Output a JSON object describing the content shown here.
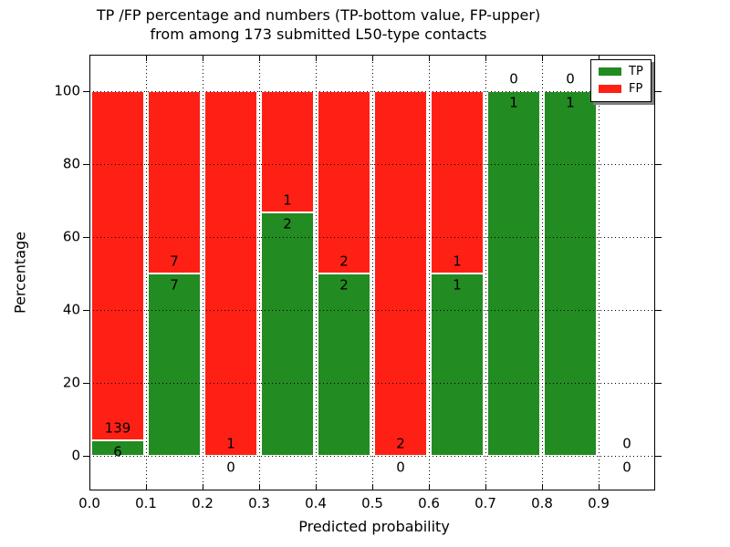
{
  "title": {
    "line1": "TP /FP percentage and numbers (TP-bottom value, FP-upper)",
    "line2": "from among 173 submitted L50-type contacts"
  },
  "axes": {
    "xlabel": "Predicted probability",
    "ylabel": "Percentage",
    "x_tick_labels": [
      "0.0",
      "0.1",
      "0.2",
      "0.3",
      "0.4",
      "0.5",
      "0.6",
      "0.7",
      "0.8",
      "0.9"
    ],
    "y_tick_labels": [
      "0",
      "20",
      "40",
      "60",
      "80",
      "100"
    ]
  },
  "legend": {
    "items": [
      {
        "label": "TP",
        "color": "#228b22"
      },
      {
        "label": "FP",
        "color": "#ff2015"
      }
    ],
    "position": "upper right"
  },
  "colors": {
    "tp": "#228b22",
    "fp": "#ff2015",
    "bar_edge": "#ffffff",
    "grid": "#000000",
    "frame": "#000000",
    "legend_shadow": "#808080",
    "background": "#ffffff"
  },
  "chart_data": {
    "type": "bar",
    "stacked": true,
    "normalized_to_percent": true,
    "title": "TP /FP percentage and numbers (TP-bottom value, FP-upper)\nfrom among 173 submitted L50-type contacts",
    "xlabel": "Predicted probability",
    "ylabel": "Percentage",
    "xlim": [
      0.0,
      1.0
    ],
    "ylim": [
      -9.5,
      110
    ],
    "x_tick_values": [
      0.0,
      0.1,
      0.2,
      0.3,
      0.4,
      0.5,
      0.6,
      0.7,
      0.8,
      0.9
    ],
    "y_tick_values": [
      0,
      20,
      40,
      60,
      80,
      100
    ],
    "grid": true,
    "grid_style": "dotted",
    "total_contacts": 173,
    "series_note": "TP drawn as bottom (green) segment, FP as upper (red) segment; segment heights are TP/(TP+FP) and FP/(TP+FP) in percent; labels show raw counts (TP below boundary, FP above boundary)",
    "bins": [
      {
        "range": [
          0.0,
          0.1
        ],
        "tp": 6,
        "fp": 139
      },
      {
        "range": [
          0.1,
          0.2
        ],
        "tp": 7,
        "fp": 7
      },
      {
        "range": [
          0.2,
          0.3
        ],
        "tp": 0,
        "fp": 1
      },
      {
        "range": [
          0.3,
          0.4
        ],
        "tp": 2,
        "fp": 1
      },
      {
        "range": [
          0.4,
          0.5
        ],
        "tp": 2,
        "fp": 2
      },
      {
        "range": [
          0.5,
          0.6
        ],
        "tp": 0,
        "fp": 2
      },
      {
        "range": [
          0.6,
          0.7
        ],
        "tp": 1,
        "fp": 1
      },
      {
        "range": [
          0.7,
          0.8
        ],
        "tp": 1,
        "fp": 0
      },
      {
        "range": [
          0.8,
          0.9
        ],
        "tp": 1,
        "fp": 0
      },
      {
        "range": [
          0.9,
          1.0
        ],
        "tp": 0,
        "fp": 0
      }
    ]
  }
}
